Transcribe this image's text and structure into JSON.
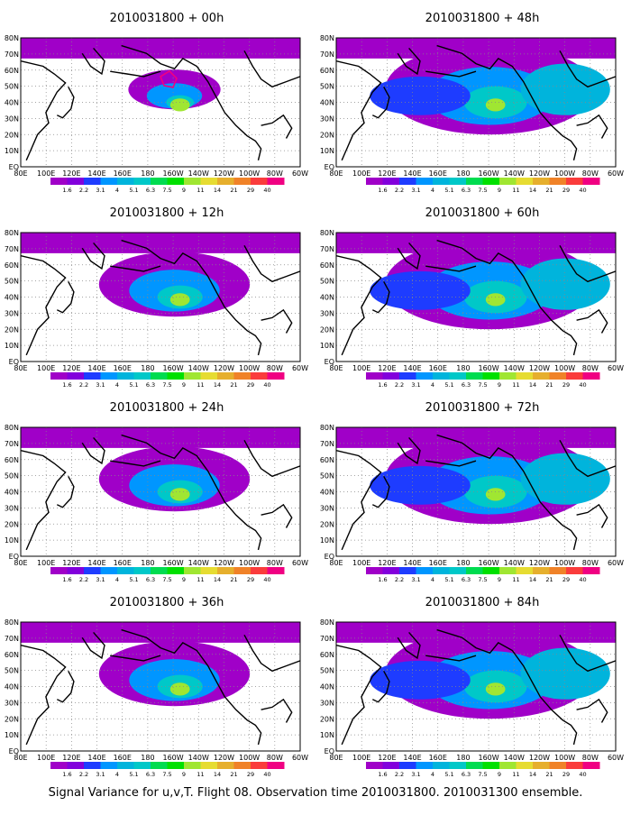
{
  "figure": {
    "caption": "Signal Variance for u,v,T. Flight 08. Observation time 2010031800. 2010031300 ensemble.",
    "lat_labels": [
      "80N",
      "70N",
      "60N",
      "50N",
      "40N",
      "30N",
      "20N",
      "10N",
      "EQ"
    ],
    "lon_labels": [
      "80E",
      "100E",
      "120E",
      "140E",
      "160E",
      "180",
      "160W",
      "140W",
      "120W",
      "100W",
      "80W",
      "60W"
    ],
    "colorbar": {
      "levels": [
        "1.6",
        "2.2",
        "3.1",
        "4",
        "5.1",
        "6.3",
        "7.5",
        "9",
        "11",
        "14",
        "21",
        "29",
        "40"
      ],
      "colors": [
        "#a000c8",
        "#8200dc",
        "#1e3cff",
        "#0096ff",
        "#00b4dc",
        "#00c8c8",
        "#00dc50",
        "#00e000",
        "#a0e632",
        "#e6dc32",
        "#e6af2d",
        "#f08228",
        "#fa3c3c",
        "#f00082"
      ]
    },
    "panels": [
      {
        "id": "p00",
        "title": "2010031800 + 00h"
      },
      {
        "id": "p48",
        "title": "2010031800 + 48h"
      },
      {
        "id": "p12",
        "title": "2010031800 + 12h"
      },
      {
        "id": "p60",
        "title": "2010031800 + 60h"
      },
      {
        "id": "p24",
        "title": "2010031800 + 24h"
      },
      {
        "id": "p72",
        "title": "2010031800 + 72h"
      },
      {
        "id": "p36",
        "title": "2010031800 + 36h"
      },
      {
        "id": "p84",
        "title": "2010031800 + 84h"
      }
    ]
  }
}
